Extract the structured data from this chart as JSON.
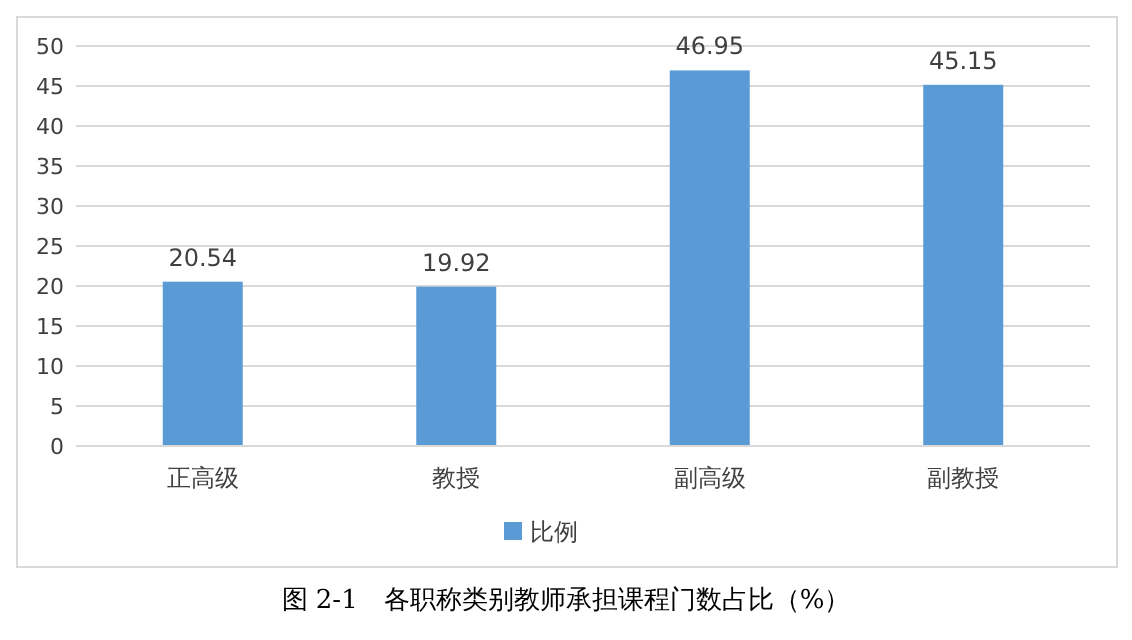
{
  "chart_data": {
    "type": "bar",
    "title": "图 2-1　各职称类别教师承担课程门数占比（%）",
    "categories": [
      "正高级",
      "教授",
      "副高级",
      "副教授"
    ],
    "series": [
      {
        "name": "比例",
        "color": "#5b9bd5",
        "values": [
          20.54,
          19.92,
          46.95,
          45.15
        ]
      }
    ],
    "ylim": [
      0,
      50
    ],
    "yticks": [
      0,
      5,
      10,
      15,
      20,
      25,
      30,
      35,
      40,
      45,
      50
    ],
    "grid": "y",
    "legend": "bottom",
    "data_labels": true
  }
}
